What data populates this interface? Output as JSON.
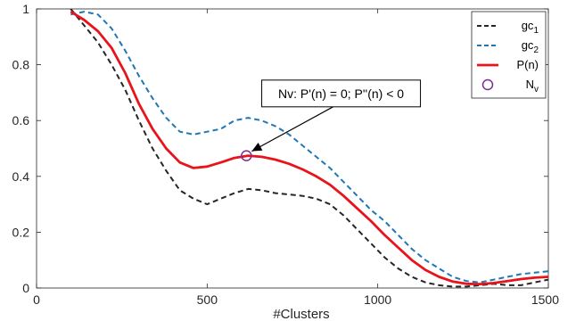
{
  "chart_data": {
    "type": "line",
    "xlabel": "#Clusters",
    "ylabel": "",
    "title": "",
    "xlim": [
      0,
      1500
    ],
    "ylim": [
      0,
      1
    ],
    "xticks": [
      0,
      500,
      1000,
      1500
    ],
    "yticks": [
      0,
      0.2,
      0.4,
      0.6,
      0.8,
      1
    ],
    "grid": false,
    "legend_position": "top-right",
    "series": [
      {
        "name": "gc",
        "name_sub": "1",
        "color": "#262626",
        "style": "dashed",
        "x": [
          100,
          140,
          180,
          220,
          260,
          300,
          340,
          380,
          420,
          460,
          500,
          540,
          580,
          620,
          660,
          700,
          740,
          780,
          820,
          860,
          900,
          940,
          980,
          1020,
          1060,
          1100,
          1140,
          1180,
          1220,
          1260,
          1300,
          1340,
          1380,
          1420,
          1460,
          1500
        ],
        "y": [
          1.0,
          0.94,
          0.88,
          0.8,
          0.71,
          0.6,
          0.5,
          0.42,
          0.35,
          0.32,
          0.3,
          0.32,
          0.34,
          0.355,
          0.35,
          0.34,
          0.335,
          0.33,
          0.32,
          0.3,
          0.26,
          0.21,
          0.16,
          0.11,
          0.07,
          0.04,
          0.02,
          0.01,
          0.005,
          0.005,
          0.01,
          0.015,
          0.01,
          0.01,
          0.02,
          0.03
        ]
      },
      {
        "name": "gc",
        "name_sub": "2",
        "color": "#1f77b4",
        "style": "dashed",
        "x": [
          100,
          140,
          180,
          220,
          260,
          300,
          340,
          380,
          420,
          460,
          500,
          540,
          580,
          620,
          660,
          700,
          740,
          780,
          820,
          860,
          900,
          940,
          980,
          1020,
          1060,
          1100,
          1140,
          1180,
          1220,
          1260,
          1300,
          1340,
          1380,
          1420,
          1460,
          1500
        ],
        "y": [
          0.98,
          0.99,
          0.98,
          0.93,
          0.85,
          0.76,
          0.68,
          0.61,
          0.56,
          0.55,
          0.56,
          0.57,
          0.6,
          0.61,
          0.6,
          0.58,
          0.55,
          0.51,
          0.47,
          0.43,
          0.38,
          0.33,
          0.28,
          0.24,
          0.19,
          0.14,
          0.1,
          0.07,
          0.04,
          0.025,
          0.02,
          0.03,
          0.04,
          0.05,
          0.055,
          0.06
        ]
      },
      {
        "name": "P(n)",
        "color": "#e8141b",
        "style": "solid",
        "x": [
          100,
          140,
          180,
          220,
          260,
          300,
          340,
          380,
          420,
          460,
          500,
          540,
          580,
          620,
          660,
          700,
          740,
          780,
          820,
          860,
          900,
          940,
          980,
          1020,
          1060,
          1100,
          1140,
          1180,
          1220,
          1260,
          1300,
          1340,
          1380,
          1420,
          1460,
          1500
        ],
        "y": [
          0.99,
          0.96,
          0.92,
          0.86,
          0.77,
          0.66,
          0.57,
          0.5,
          0.45,
          0.43,
          0.435,
          0.45,
          0.466,
          0.474,
          0.47,
          0.46,
          0.445,
          0.425,
          0.4,
          0.37,
          0.33,
          0.285,
          0.24,
          0.19,
          0.145,
          0.1,
          0.065,
          0.04,
          0.023,
          0.015,
          0.014,
          0.018,
          0.025,
          0.032,
          0.037,
          0.04
        ]
      }
    ],
    "marker": {
      "name": "N",
      "name_sub": "v",
      "x": 615,
      "y": 0.474,
      "color": "#7b2d8e"
    },
    "annotation": {
      "text": "Nv: P'(n) = 0; P''(n) < 0",
      "box_x": 660,
      "box_y": 0.745,
      "target_x": 615,
      "target_y": 0.474
    }
  }
}
